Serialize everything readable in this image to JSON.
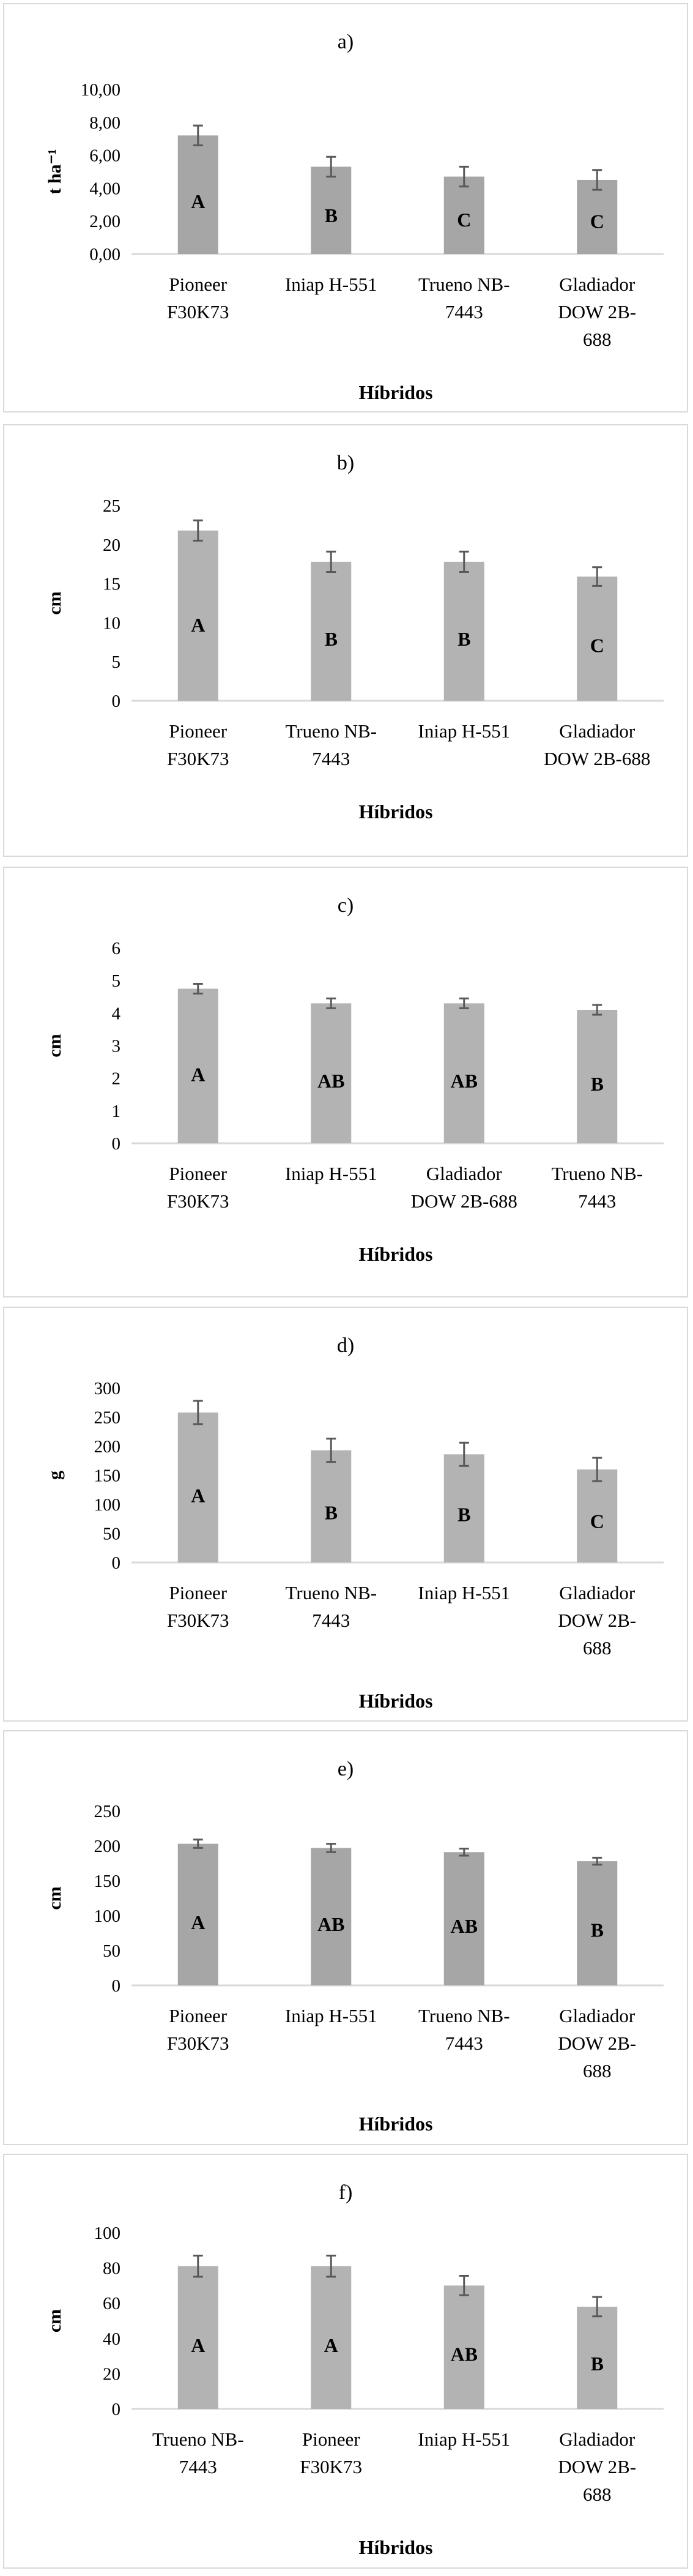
{
  "chart_data": [
    {
      "type": "bar",
      "title": "a)",
      "xlabel": "Híbridos",
      "ylabel": "t ha⁻¹",
      "ylim": [
        0,
        10
      ],
      "yticks": [
        "0,00",
        "2,00",
        "4,00",
        "6,00",
        "8,00",
        "10,00"
      ],
      "categories": [
        [
          "Pioneer",
          "F30K73"
        ],
        [
          "Iniap H-551"
        ],
        [
          "Trueno NB-",
          "7443"
        ],
        [
          "Gladiador",
          "DOW 2B-",
          "688"
        ]
      ],
      "values": [
        7.2,
        5.3,
        4.7,
        4.5
      ],
      "errors": [
        0.6,
        0.6,
        0.6,
        0.6
      ],
      "letters": [
        "A",
        "B",
        "C",
        "C"
      ],
      "bar_color": "#a6a6a6"
    },
    {
      "type": "bar",
      "title": "b)",
      "xlabel": "Híbridos",
      "ylabel": "cm",
      "ylim": [
        0,
        25
      ],
      "yticks": [
        "0",
        "5",
        "10",
        "15",
        "20",
        "25"
      ],
      "categories": [
        [
          "Pioneer",
          "F30K73"
        ],
        [
          "Trueno NB-",
          "7443"
        ],
        [
          "Iniap H-551"
        ],
        [
          "Gladiador",
          "DOW 2B-688"
        ]
      ],
      "values": [
        21.8,
        17.8,
        17.8,
        15.9
      ],
      "errors": [
        1.3,
        1.3,
        1.3,
        1.2
      ],
      "letters": [
        "A",
        "B",
        "B",
        "C"
      ],
      "bar_color": "#b3b3b3"
    },
    {
      "type": "bar",
      "title": "c)",
      "xlabel": "Híbridos",
      "ylabel": "cm",
      "ylim": [
        0,
        6
      ],
      "yticks": [
        "0",
        "1",
        "2",
        "3",
        "4",
        "5",
        "6"
      ],
      "categories": [
        [
          "Pioneer",
          "F30K73"
        ],
        [
          "Iniap H-551"
        ],
        [
          "Gladiador",
          "DOW 2B-688"
        ],
        [
          "Trueno NB-",
          "7443"
        ]
      ],
      "values": [
        4.75,
        4.3,
        4.3,
        4.1
      ],
      "errors": [
        0.15,
        0.15,
        0.15,
        0.15
      ],
      "letters": [
        "A",
        "AB",
        "AB",
        "B"
      ],
      "bar_color": "#b3b3b3"
    },
    {
      "type": "bar",
      "title": "d)",
      "xlabel": "Híbridos",
      "ylabel": "g",
      "ylim": [
        0,
        300
      ],
      "yticks": [
        "0",
        "50",
        "100",
        "150",
        "200",
        "250",
        "300"
      ],
      "categories": [
        [
          "Pioneer",
          "F30K73"
        ],
        [
          "Trueno NB-",
          "7443"
        ],
        [
          "Iniap H-551"
        ],
        [
          "Gladiador",
          "DOW 2B-",
          "688"
        ]
      ],
      "values": [
        258,
        193,
        186,
        160
      ],
      "errors": [
        20,
        20,
        20,
        20
      ],
      "letters": [
        "A",
        "B",
        "B",
        "C"
      ],
      "bar_color": "#b3b3b3"
    },
    {
      "type": "bar",
      "title": "e)",
      "xlabel": "Híbridos",
      "ylabel": "cm",
      "ylim": [
        0,
        250
      ],
      "yticks": [
        "0",
        "50",
        "100",
        "150",
        "200",
        "250"
      ],
      "categories": [
        [
          "Pioneer",
          "F30K73"
        ],
        [
          "Iniap H-551"
        ],
        [
          "Trueno NB-",
          "7443"
        ],
        [
          "Gladiador",
          "DOW 2B-",
          "688"
        ]
      ],
      "values": [
        203,
        197,
        191,
        178
      ],
      "errors": [
        6,
        6,
        5,
        5
      ],
      "letters": [
        "A",
        "AB",
        "AB",
        "B"
      ],
      "bar_color": "#a6a6a6"
    },
    {
      "type": "bar",
      "title": "f)",
      "xlabel": "Híbridos",
      "ylabel": "cm",
      "ylim": [
        0,
        100
      ],
      "yticks": [
        "0",
        "20",
        "40",
        "60",
        "80",
        "100"
      ],
      "categories": [
        [
          "Trueno NB-",
          "7443"
        ],
        [
          "Pioneer",
          "F30K73"
        ],
        [
          "Iniap H-551"
        ],
        [
          "Gladiador",
          "DOW 2B-",
          "688"
        ]
      ],
      "values": [
        81,
        81,
        70,
        58
      ],
      "errors": [
        6,
        6,
        5.5,
        5.5
      ],
      "letters": [
        "A",
        "A",
        "AB",
        "B"
      ],
      "bar_color": "#b3b3b3"
    }
  ]
}
